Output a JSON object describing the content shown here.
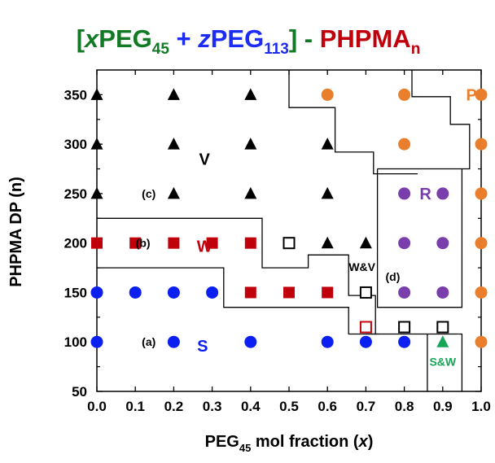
{
  "chart_data": {
    "type": "scatter",
    "title": {
      "open_bracket": "[",
      "x": "x",
      "peg45": "PEG",
      "peg45_sub": "45",
      "plus": " + ",
      "z": "z",
      "peg113": "PEG",
      "peg113_sub": "113",
      "close_bracket": "] - ",
      "phpma": "PHPMA",
      "phpma_sub": "n"
    },
    "xlabel": {
      "main": "PEG",
      "sub": "45",
      "rest": " mol fraction (",
      "var": "x",
      "close": ")"
    },
    "ylabel": "PHPMA DP (n)",
    "xlim": [
      0.0,
      1.0
    ],
    "ylim": [
      50,
      375
    ],
    "x_ticks": [
      "0.0",
      "0.1",
      "0.2",
      "0.3",
      "0.4",
      "0.5",
      "0.6",
      "0.7",
      "0.8",
      "0.9",
      "1.0"
    ],
    "y_ticks": [
      "50",
      "100",
      "150",
      "200",
      "250",
      "300",
      "350"
    ],
    "grid": false,
    "colors": {
      "vesicle": "#000000",
      "worm": "#c0000b",
      "sphere": "#0a1ff0",
      "precipitate": "#e97f2c",
      "rod": "#7a3eac",
      "sw": "#17a558",
      "title_green": "#127a24",
      "title_blue": "#1d2cf5",
      "title_red": "#c0000b"
    },
    "series": [
      {
        "name": "V",
        "marker": "triangle",
        "color": "#000000",
        "points": [
          [
            0.0,
            350
          ],
          [
            0.2,
            350
          ],
          [
            0.4,
            350
          ],
          [
            0.0,
            300
          ],
          [
            0.2,
            300
          ],
          [
            0.4,
            300
          ],
          [
            0.6,
            300
          ],
          [
            0.0,
            250
          ],
          [
            0.2,
            250
          ],
          [
            0.4,
            250
          ],
          [
            0.6,
            250
          ],
          [
            0.6,
            200
          ],
          [
            0.7,
            200
          ]
        ]
      },
      {
        "name": "W",
        "marker": "square",
        "color": "#c0000b",
        "points": [
          [
            0.0,
            200
          ],
          [
            0.1,
            200
          ],
          [
            0.2,
            200
          ],
          [
            0.3,
            200
          ],
          [
            0.4,
            200
          ],
          [
            0.4,
            150
          ],
          [
            0.5,
            150
          ],
          [
            0.6,
            150
          ]
        ]
      },
      {
        "name": "S",
        "marker": "circle",
        "color": "#0a1ff0",
        "points": [
          [
            0.0,
            150
          ],
          [
            0.1,
            150
          ],
          [
            0.2,
            150
          ],
          [
            0.3,
            150
          ],
          [
            0.0,
            100
          ],
          [
            0.2,
            100
          ],
          [
            0.4,
            100
          ],
          [
            0.6,
            100
          ],
          [
            0.7,
            100
          ],
          [
            0.8,
            100
          ]
        ]
      },
      {
        "name": "P",
        "marker": "circle",
        "color": "#e97f2c",
        "points": [
          [
            0.6,
            350
          ],
          [
            0.8,
            350
          ],
          [
            1.0,
            350
          ],
          [
            0.8,
            300
          ],
          [
            1.0,
            300
          ],
          [
            1.0,
            250
          ],
          [
            1.0,
            200
          ],
          [
            1.0,
            150
          ],
          [
            1.0,
            100
          ]
        ]
      },
      {
        "name": "R",
        "marker": "circle",
        "color": "#7a3eac",
        "points": [
          [
            0.8,
            250
          ],
          [
            0.9,
            250
          ],
          [
            0.8,
            200
          ],
          [
            0.9,
            200
          ],
          [
            0.8,
            150
          ],
          [
            0.9,
            150
          ]
        ]
      },
      {
        "name": "W&V",
        "marker": "square-open",
        "color": "#000000",
        "points": [
          [
            0.5,
            200
          ],
          [
            0.7,
            150
          ],
          [
            0.8,
            115
          ],
          [
            0.9,
            115
          ]
        ]
      },
      {
        "name": "W-open",
        "marker": "square-open",
        "color": "#c0000b",
        "points": [
          [
            0.7,
            115
          ]
        ]
      },
      {
        "name": "S&W",
        "marker": "triangle",
        "color": "#17a558",
        "points": [
          [
            0.9,
            100
          ]
        ]
      }
    ],
    "region_labels": [
      {
        "text": "P",
        "x": 0.975,
        "y": 350,
        "color": "#e97f2c",
        "size": "big"
      },
      {
        "text": "V",
        "x": 0.28,
        "y": 285,
        "color": "#000000",
        "size": "big"
      },
      {
        "text": "R",
        "x": 0.855,
        "y": 250,
        "color": "#7a3eac",
        "size": "big"
      },
      {
        "text": "W",
        "x": 0.28,
        "y": 197,
        "color": "#c0000b",
        "size": "big"
      },
      {
        "text": "S",
        "x": 0.275,
        "y": 96,
        "color": "#0a1ff0",
        "size": "big"
      },
      {
        "text": "W&V",
        "x": 0.69,
        "y": 176,
        "color": "#000000",
        "size": "small"
      },
      {
        "text": "S&W",
        "x": 0.9,
        "y": 80,
        "color": "#17a558",
        "size": "small"
      }
    ],
    "annotations": [
      {
        "text": "(a)",
        "x": 0.135,
        "y": 100
      },
      {
        "text": "(b)",
        "x": 0.12,
        "y": 200
      },
      {
        "text": "(c)",
        "x": 0.135,
        "y": 250
      },
      {
        "text": "(d)",
        "x": 0.77,
        "y": 166
      }
    ],
    "boundaries": [
      [
        [
          0.0,
          225
        ],
        [
          0.43,
          225
        ],
        [
          0.43,
          175
        ],
        [
          0.55,
          175
        ],
        [
          0.55,
          188
        ],
        [
          0.655,
          188
        ],
        [
          0.655,
          147
        ],
        [
          0.725,
          147
        ],
        [
          0.725,
          108
        ],
        [
          0.7,
          108
        ]
      ],
      [
        [
          0.0,
          175
        ],
        [
          0.33,
          175
        ],
        [
          0.33,
          135
        ],
        [
          0.655,
          135
        ],
        [
          0.655,
          108
        ],
        [
          0.735,
          108
        ]
      ],
      [
        [
          0.5,
          375
        ],
        [
          0.5,
          337
        ],
        [
          0.62,
          337
        ],
        [
          0.62,
          292
        ],
        [
          0.72,
          292
        ],
        [
          0.72,
          270
        ],
        [
          0.835,
          270
        ]
      ],
      [
        [
          0.725,
          108
        ],
        [
          0.95,
          108
        ],
        [
          0.95,
          50
        ]
      ],
      [
        [
          0.86,
          50
        ],
        [
          0.86,
          108
        ]
      ],
      [
        [
          0.73,
          275
        ],
        [
          0.73,
          135
        ],
        [
          0.95,
          135
        ],
        [
          0.95,
          275
        ],
        [
          0.73,
          275
        ]
      ],
      [
        [
          0.82,
          375
        ],
        [
          0.82,
          348
        ],
        [
          0.92,
          348
        ],
        [
          0.92,
          320
        ],
        [
          0.97,
          320
        ],
        [
          0.97,
          275
        ],
        [
          0.95,
          275
        ]
      ]
    ]
  }
}
